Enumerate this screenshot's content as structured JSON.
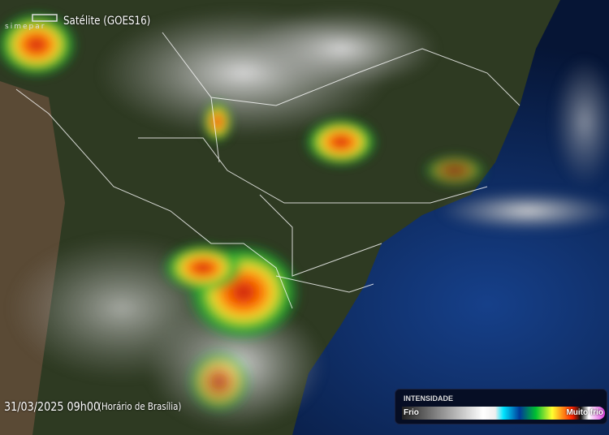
{
  "header": {
    "logo_text": "simepar",
    "title": "Satélite (GOES16)"
  },
  "timestamp": {
    "date": "31/03/2025 09h00",
    "timezone": "(Horário de Brasília)"
  },
  "legend": {
    "title": "INTENSIDADE",
    "min_label": "Frio",
    "max_label": "Muito frio"
  },
  "colors": {
    "ocean": "#0b2a66",
    "land": "#2f3a1f",
    "cloud": "#bfc3c8",
    "storm": "#ff2a00"
  }
}
